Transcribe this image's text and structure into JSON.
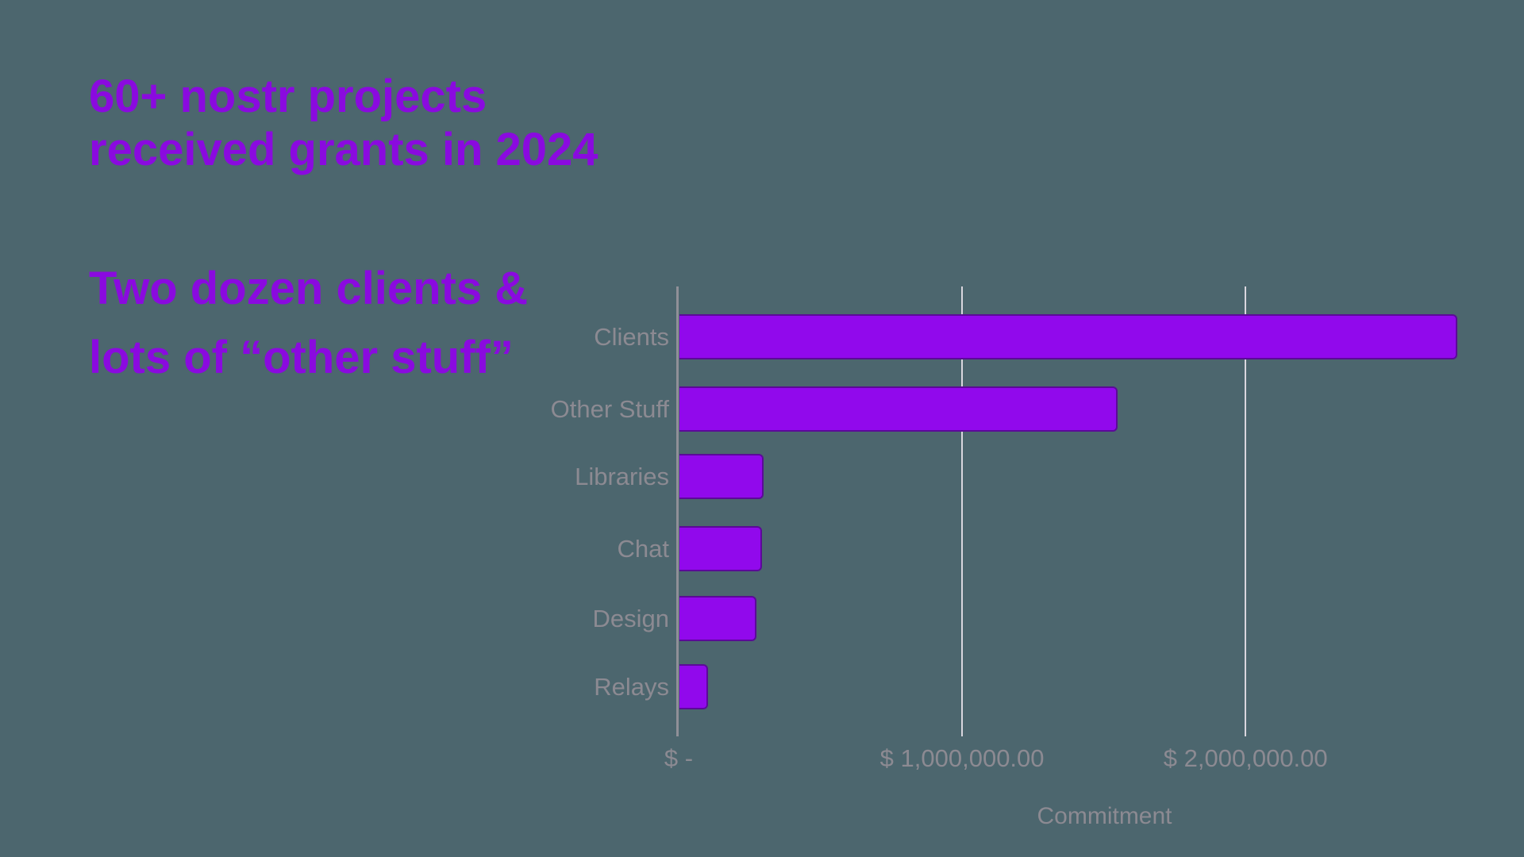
{
  "background_color": "#4C666E",
  "heading_color": "#8A0ADF",
  "title": {
    "line1": "60+ nostr projects",
    "line2": "received grants in 2024"
  },
  "subtitle": {
    "line1": "Two dozen clients &",
    "line2": "lots of “other stuff”"
  },
  "chart_data": {
    "type": "bar",
    "orientation": "horizontal",
    "title": "",
    "xlabel": "Commitment",
    "ylabel": "",
    "categories": [
      "Clients",
      "Other Stuff",
      "Libraries",
      "Chat",
      "Design",
      "Relays"
    ],
    "values": [
      2745000,
      1545000,
      298000,
      292000,
      272000,
      100000
    ],
    "xlim": [
      0,
      2873000
    ],
    "x_ticks": [
      {
        "value": 0,
        "label": "$ -"
      },
      {
        "value": 1000000,
        "label": "$ 1,000,000.00"
      },
      {
        "value": 2000000,
        "label": "$ 2,000,000.00"
      }
    ],
    "grid": "vertical-only",
    "legend": "none",
    "bar_color": "#9109EC",
    "gridline_color": "#D9D6DE",
    "axis_line_color": "#909098",
    "label_color": "#8C8A92"
  }
}
